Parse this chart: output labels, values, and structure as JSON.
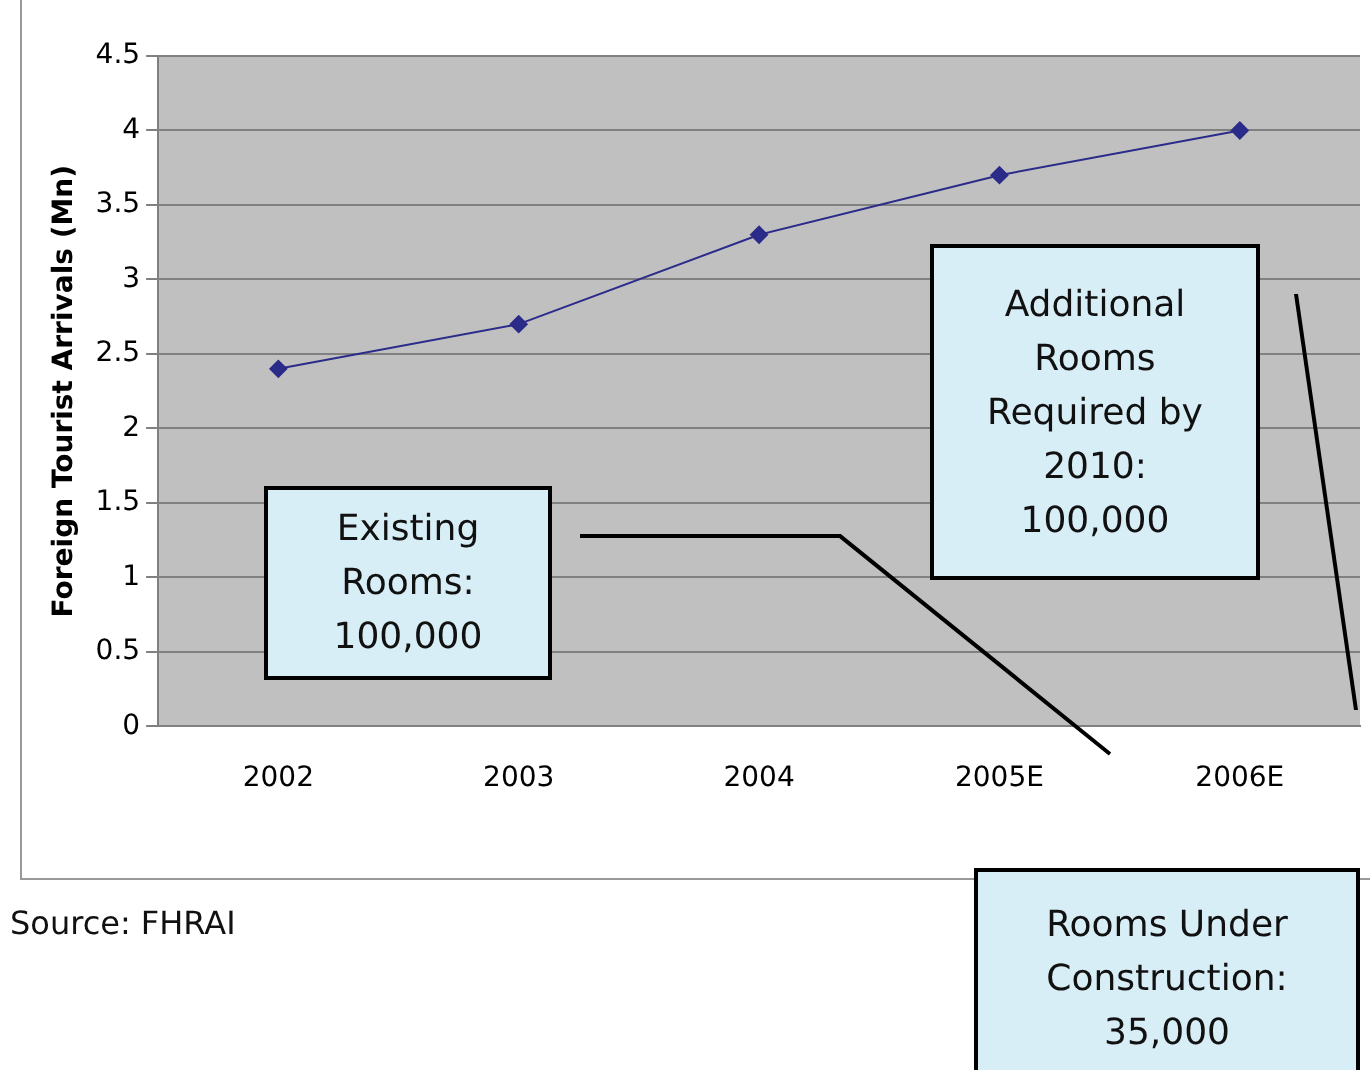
{
  "chart_data": {
    "type": "line",
    "ylabel": "Foreign Tourist Arrivals (Mn)",
    "categories": [
      "2002",
      "2003",
      "2004",
      "2005E",
      "2006E"
    ],
    "series": [
      {
        "color": "#2b2b8a",
        "values": [
          2.4,
          2.7,
          3.3,
          3.7,
          4.0
        ]
      }
    ],
    "ylim": [
      0,
      4.5
    ],
    "yticks": [
      0,
      0.5,
      1,
      1.5,
      2,
      2.5,
      3,
      3.5,
      4,
      4.5
    ],
    "grid": "y",
    "legend": false,
    "marker": "diamond",
    "line_style": "solid",
    "annotations": [
      "Existing Rooms: 100,000",
      "Additional Rooms Required by 2010: 100,000",
      "Rooms Under Construction: 35,000",
      "Source: FHRAI"
    ]
  }
}
